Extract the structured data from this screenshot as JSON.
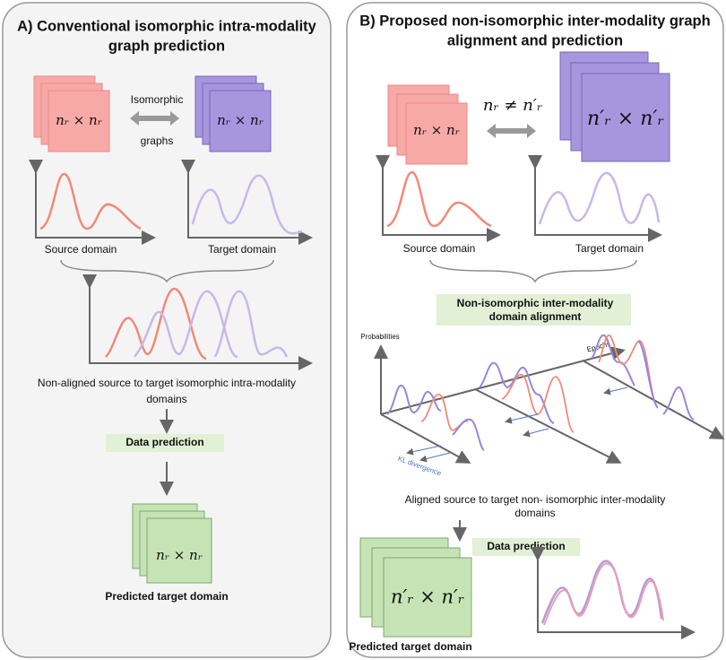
{
  "panel_a": {
    "title_lines": [
      "A) Conventional isomorphic intra-modality",
      "graph prediction"
    ],
    "source_matrix": "nᵣ × nᵣ",
    "target_matrix": "nᵣ × nᵣ",
    "relation_top": "Isomorphic",
    "relation_bottom": "graphs",
    "source_label": "Source domain",
    "target_label": "Target domain",
    "caption_lines": [
      "Non-aligned source to target isomorphic intra-modality",
      "domains"
    ],
    "step": "Data prediction",
    "predicted_matrix": "nᵣ × nᵣ",
    "predicted_label": "Predicted target domain"
  },
  "panel_b": {
    "title_lines": [
      "B) Proposed non-isomorphic inter-modality graph",
      "alignment and prediction"
    ],
    "source_matrix": "nᵣ × nᵣ",
    "target_matrix": "n′ᵣ × n′ᵣ",
    "relation": "nᵣ ≠ n′ᵣ",
    "source_label": "Source domain",
    "target_label": "Target domain",
    "alignment_lines": [
      "Non-isomorphic inter-modality",
      "domain alignment"
    ],
    "y_axis_label": "Probabilities",
    "epoch_label": "Epochs",
    "divergence_label": "KL divergence",
    "caption_lines": [
      "Aligned source to target non- isomorphic inter-modality",
      "domains"
    ],
    "step": "Data prediction",
    "predicted_matrix": "n′ᵣ × n′ᵣ",
    "predicted_label": "Predicted target domain"
  }
}
